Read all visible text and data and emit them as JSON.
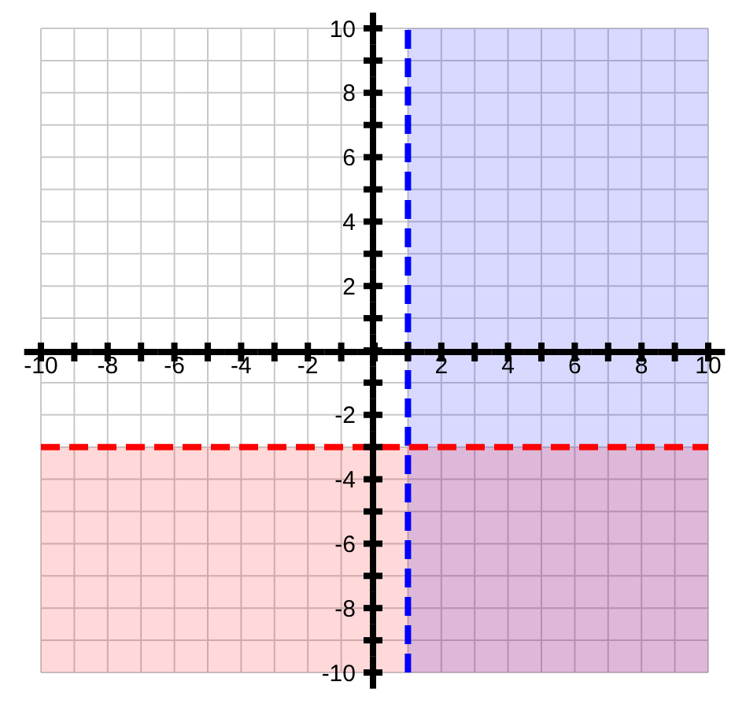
{
  "chart_data": {
    "type": "line",
    "grid": true,
    "xlim": [
      -10,
      10
    ],
    "ylim": [
      -10,
      10
    ],
    "xticks": [
      -10,
      {
        "value": -9,
        "label": null
      },
      -8,
      {
        "value": -7,
        "label": null
      },
      -6,
      {
        "value": -5,
        "label": null
      },
      -4,
      {
        "value": -3,
        "label": null
      },
      -2,
      {
        "value": -1,
        "label": null
      },
      {
        "value": 0,
        "label": null
      },
      {
        "value": 1,
        "label": null
      },
      2,
      {
        "value": 3,
        "label": null
      },
      4,
      {
        "value": 5,
        "label": null
      },
      6,
      {
        "value": 7,
        "label": null
      },
      8,
      {
        "value": 9,
        "label": null
      },
      10
    ],
    "yticks": [
      -10,
      {
        "value": -9,
        "label": null
      },
      -8,
      {
        "value": -7,
        "label": null
      },
      -6,
      {
        "value": -5,
        "label": null
      },
      -4,
      {
        "value": -3,
        "label": null
      },
      -2,
      {
        "value": -1,
        "label": null
      },
      {
        "value": 0,
        "label": null
      },
      {
        "value": 1,
        "label": null
      },
      2,
      {
        "value": 3,
        "label": null
      },
      4,
      {
        "value": 5,
        "label": null
      },
      6,
      {
        "value": 7,
        "label": null
      },
      8,
      {
        "value": 9,
        "label": null
      },
      10
    ],
    "ref_lines": [
      {
        "axis": "x",
        "value": 1,
        "color": "#0000ff",
        "line_style": "dashed"
      },
      {
        "axis": "y",
        "value": -3,
        "color": "#ff0000",
        "line_style": "dashed"
      }
    ],
    "bands": [
      {
        "axis": "x",
        "from": 1,
        "to": 10,
        "color": "#0000ff"
      },
      {
        "axis": "y",
        "from": -10,
        "to": -3,
        "color": "#ff0000"
      }
    ]
  }
}
